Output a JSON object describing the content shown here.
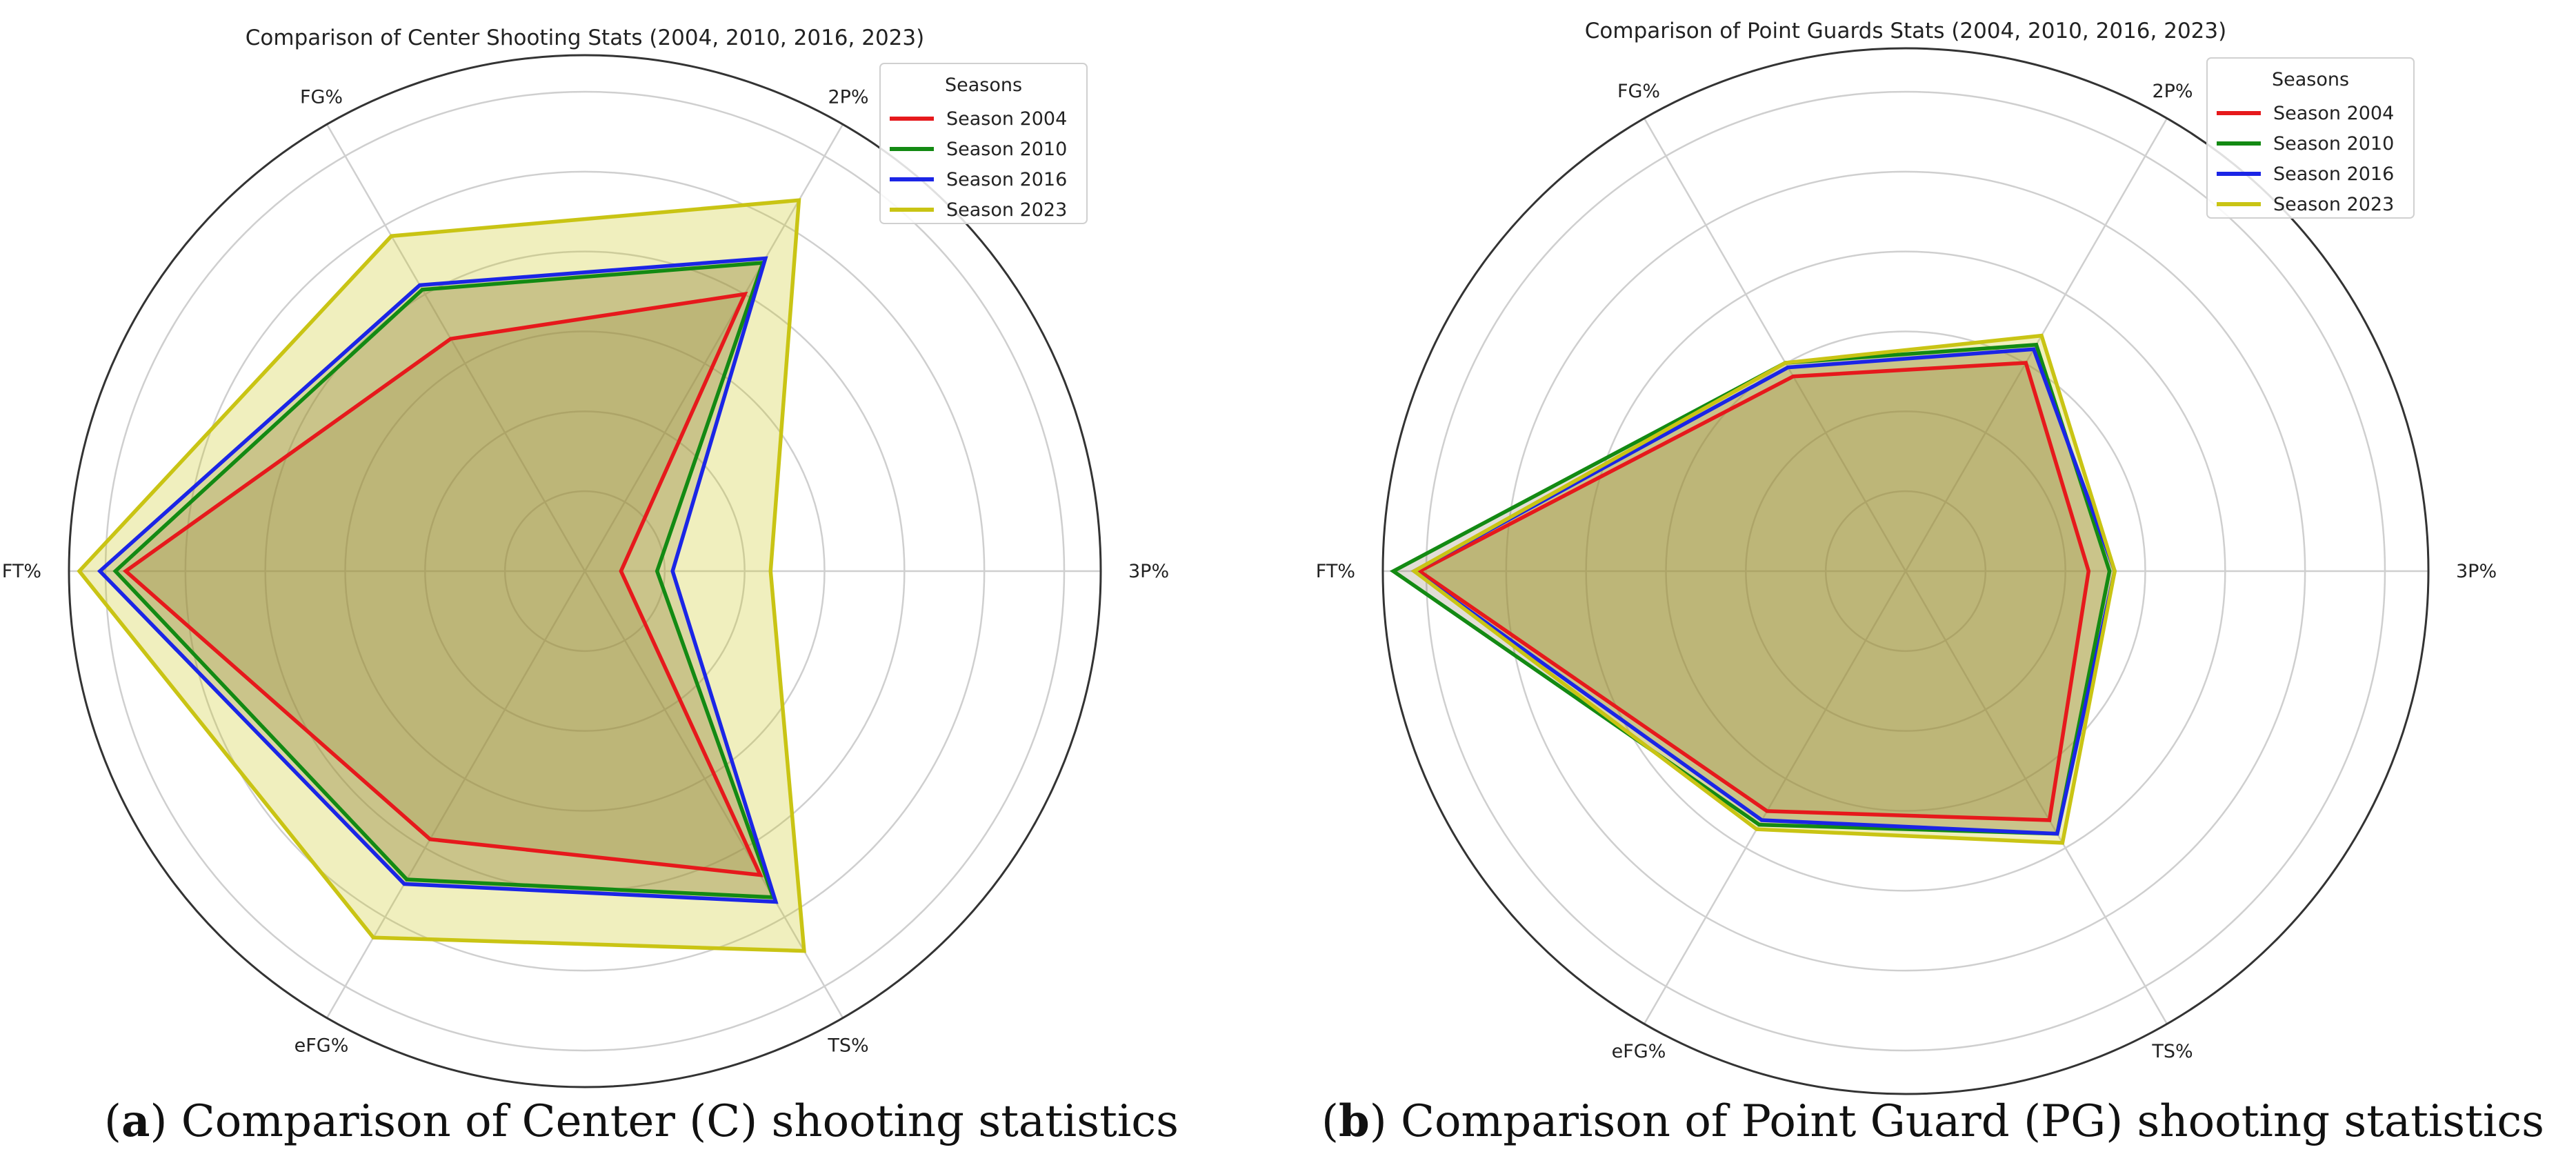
{
  "chart_data": [
    {
      "type": "radar",
      "title": "Comparison of Center Shooting Stats (2004, 2010, 2016, 2023)",
      "axes": [
        "3P%",
        "2P%",
        "FG%",
        "FT%",
        "eFG%",
        "TS%"
      ],
      "legend_title": "Seasons",
      "legend_position": "top-right",
      "radial_gridlines": 6,
      "series": [
        {
          "name": "Season 2004",
          "color": "#e6191c",
          "fill": false,
          "values": [
            0.07,
            0.62,
            0.52,
            0.89,
            0.6,
            0.68
          ]
        },
        {
          "name": "Season 2010",
          "color": "#138a13",
          "fill": false,
          "values": [
            0.14,
            0.69,
            0.63,
            0.91,
            0.69,
            0.73
          ]
        },
        {
          "name": "Season 2016",
          "color": "#1b25e6",
          "fill": false,
          "values": [
            0.17,
            0.7,
            0.64,
            0.94,
            0.7,
            0.74
          ]
        },
        {
          "name": "Season 2023",
          "color": "#c9c414",
          "fill": true,
          "values": [
            0.36,
            0.83,
            0.75,
            0.98,
            0.82,
            0.85
          ]
        }
      ],
      "caption_letter": "a",
      "caption": "Comparison of Center (C) shooting statistics"
    },
    {
      "type": "radar",
      "title": "Comparison of Point Guards Stats (2004, 2010, 2016, 2023)",
      "axes": [
        "3P%",
        "2P%",
        "FG%",
        "FT%",
        "eFG%",
        "TS%"
      ],
      "legend_title": "Seasons",
      "legend_position": "top-right",
      "radial_gridlines": 6,
      "series": [
        {
          "name": "Season 2004",
          "color": "#e6191c",
          "fill": false,
          "values": [
            0.35,
            0.46,
            0.43,
            0.93,
            0.53,
            0.55
          ]
        },
        {
          "name": "Season 2010",
          "color": "#138a13",
          "fill": false,
          "values": [
            0.39,
            0.5,
            0.46,
            0.98,
            0.56,
            0.58
          ]
        },
        {
          "name": "Season 2016",
          "color": "#1b25e6",
          "fill": false,
          "values": [
            0.4,
            0.49,
            0.45,
            0.94,
            0.55,
            0.58
          ]
        },
        {
          "name": "Season 2023",
          "color": "#c9c414",
          "fill": true,
          "values": [
            0.4,
            0.52,
            0.46,
            0.94,
            0.57,
            0.6
          ]
        }
      ],
      "caption_letter": "b",
      "caption": "Comparison of Point Guard (PG) shooting statistics"
    }
  ]
}
